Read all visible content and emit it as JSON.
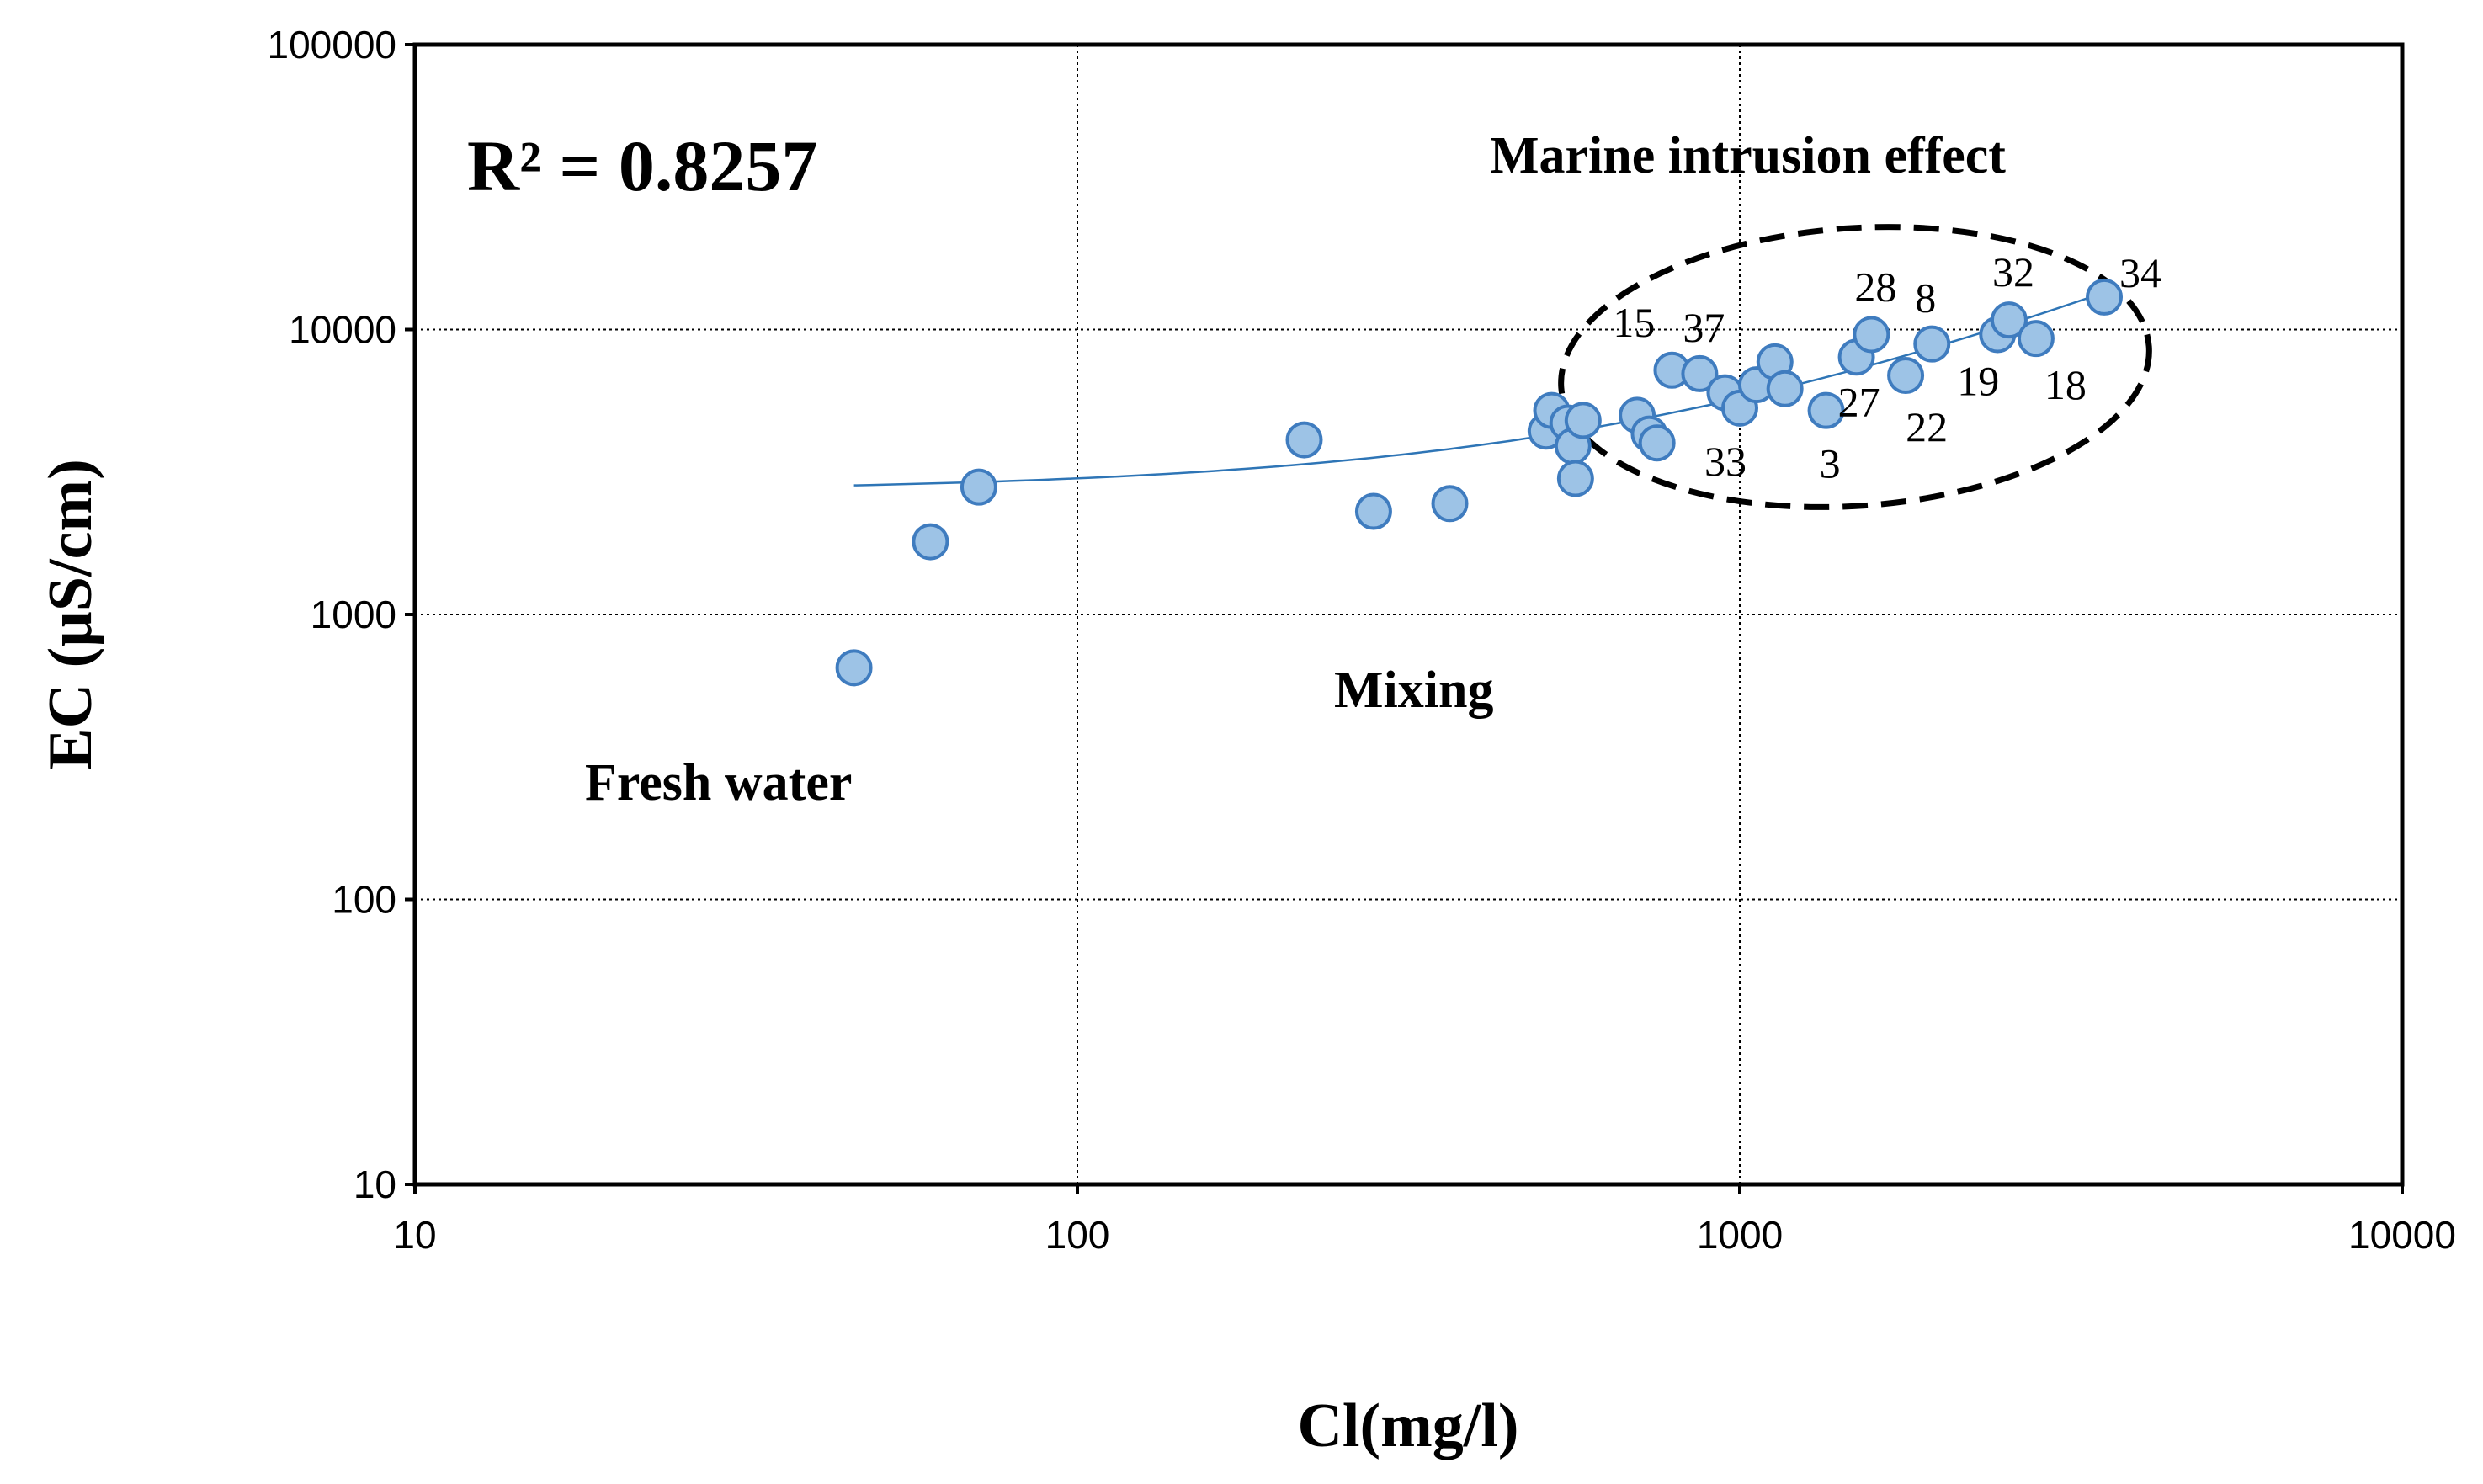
{
  "chart_data": {
    "type": "scatter",
    "title": "",
    "xlabel": "Cl(mg/l)",
    "ylabel": "EC (µS/cm)",
    "xscale": "log",
    "yscale": "log",
    "xlim": [
      10,
      10000
    ],
    "ylim": [
      10,
      100000
    ],
    "x_ticks": [
      10,
      100,
      1000,
      10000
    ],
    "x_tick_labels": [
      "10",
      "100",
      "1000",
      "10000"
    ],
    "y_ticks": [
      10,
      100,
      1000,
      10000,
      100000
    ],
    "y_tick_labels": [
      "10",
      "100",
      "1000",
      "10000",
      "100000"
    ],
    "grid": true,
    "r_squared_label": "R² = 0.8257",
    "annotations": {
      "marine": "Marine intrusion effect",
      "mixing": "Mixing",
      "fresh": "Fresh water"
    },
    "points": [
      {
        "x": 46,
        "y": 650
      },
      {
        "x": 60,
        "y": 1800
      },
      {
        "x": 71,
        "y": 2800
      },
      {
        "x": 220,
        "y": 4100
      },
      {
        "x": 280,
        "y": 2300
      },
      {
        "x": 365,
        "y": 2450
      },
      {
        "x": 510,
        "y": 4400
      },
      {
        "x": 520,
        "y": 5200
      },
      {
        "x": 550,
        "y": 4700
      },
      {
        "x": 560,
        "y": 3900
      },
      {
        "x": 565,
        "y": 3000
      },
      {
        "x": 580,
        "y": 4800
      },
      {
        "x": 700,
        "y": 5000
      },
      {
        "x": 730,
        "y": 4300
      },
      {
        "x": 750,
        "y": 4000
      },
      {
        "x": 790,
        "y": 7200,
        "label": "15"
      },
      {
        "x": 870,
        "y": 7000,
        "label": "37"
      },
      {
        "x": 950,
        "y": 6000
      },
      {
        "x": 1000,
        "y": 5300,
        "label": "33"
      },
      {
        "x": 1060,
        "y": 6400
      },
      {
        "x": 1130,
        "y": 7700
      },
      {
        "x": 1170,
        "y": 6200
      },
      {
        "x": 1350,
        "y": 5200,
        "label": "3"
      },
      {
        "x": 1500,
        "y": 8000,
        "label": "27"
      },
      {
        "x": 1580,
        "y": 9600,
        "label": "28"
      },
      {
        "x": 1780,
        "y": 6900,
        "label": "22"
      },
      {
        "x": 1950,
        "y": 8900,
        "label": "8"
      },
      {
        "x": 2450,
        "y": 9600,
        "label": "19"
      },
      {
        "x": 2550,
        "y": 10800,
        "label": "32"
      },
      {
        "x": 2800,
        "y": 9300,
        "label": "18"
      },
      {
        "x": 3550,
        "y": 13000,
        "label": "34"
      }
    ],
    "trendline": {
      "type": "linear",
      "slope": 3.04,
      "intercept": 2700,
      "x_range": [
        46,
        3550
      ]
    }
  }
}
